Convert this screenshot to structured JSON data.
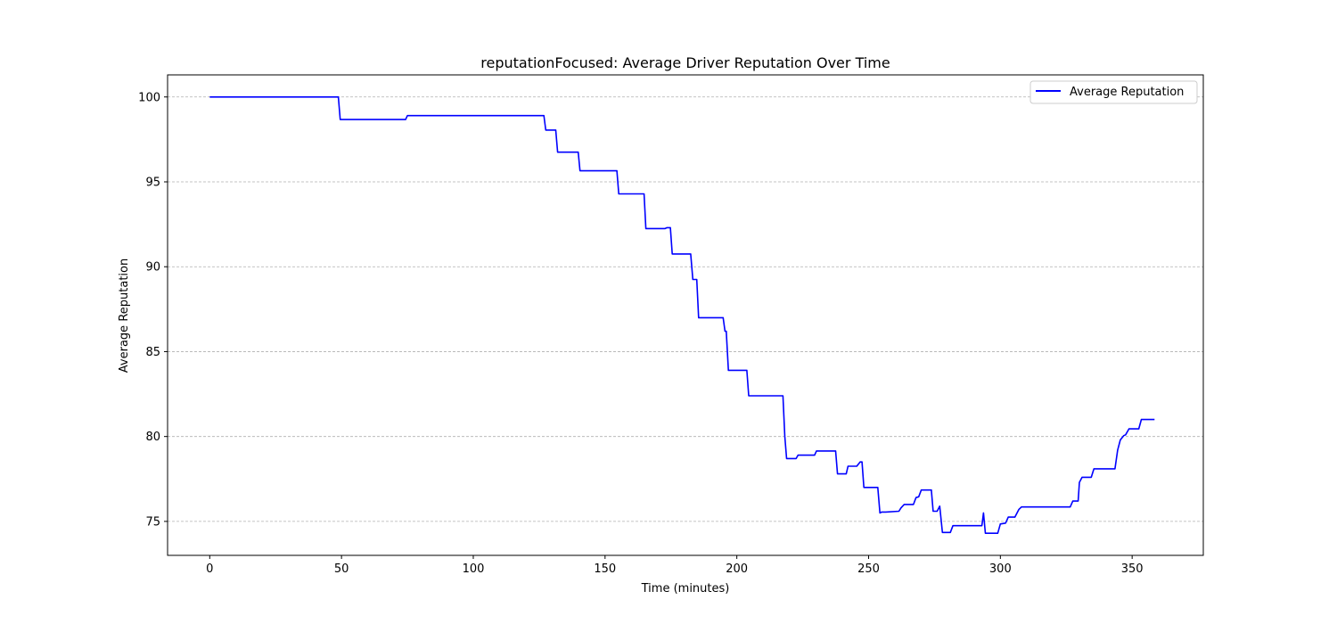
{
  "chart_data": {
    "type": "line",
    "title": "reputationFocused: Average Driver Reputation Over Time",
    "xlabel": "Time (minutes)",
    "ylabel": "Average Reputation",
    "xlim": [
      -16,
      377
    ],
    "ylim": [
      73.0,
      101.3
    ],
    "xticks": [
      0,
      50,
      100,
      150,
      200,
      250,
      300,
      350
    ],
    "yticks": [
      75,
      80,
      85,
      90,
      95,
      100
    ],
    "grid": "y-dashed",
    "legend_position": "top-right",
    "series": [
      {
        "name": "Average Reputation",
        "color": "#0000ff",
        "x": [
          0,
          48.8,
          49.5,
          74.3,
          75.0,
          126.8,
          127.5,
          131.3,
          132.0,
          139.8,
          140.5,
          154.5,
          155.2,
          164.8,
          165.5,
          172.8,
          173.5,
          174.8,
          175.5,
          182.5,
          183.3,
          184.8,
          185.5,
          194.8,
          195.5,
          196.0,
          196.8,
          203.8,
          204.5,
          217.5,
          218.2,
          218.9,
          222.5,
          223.2,
          229.5,
          230.2,
          237.5,
          238.2,
          241.5,
          242.2,
          245.5,
          246.8,
          247.5,
          248.2,
          253.5,
          254.3,
          255.0,
          256.5,
          261.5,
          262.3,
          263.5,
          267.0,
          268.0,
          269.0,
          270.0,
          273.8,
          274.5,
          276.0,
          277.0,
          278.0,
          281.0,
          282.0,
          293.0,
          293.6,
          294.3,
          299.0,
          300.0,
          302.0,
          303.0,
          305.5,
          307.0,
          308.0,
          326.5,
          327.5,
          329.5,
          330.0,
          331.0,
          334.5,
          335.5,
          343.5,
          344.5,
          345.5,
          346.8,
          347.5,
          348.8,
          349.5,
          352.5,
          353.5,
          358.5
        ],
        "y": [
          100.0,
          100.0,
          98.67,
          98.67,
          98.9,
          98.9,
          98.05,
          98.05,
          96.75,
          96.75,
          95.65,
          95.65,
          94.29,
          94.29,
          92.25,
          92.25,
          92.3,
          92.3,
          90.75,
          90.75,
          89.25,
          89.25,
          87.0,
          87.0,
          86.2,
          86.2,
          83.9,
          83.9,
          82.4,
          82.4,
          80.0,
          78.7,
          78.7,
          78.9,
          78.9,
          79.15,
          79.15,
          77.8,
          77.8,
          78.25,
          78.25,
          78.5,
          78.5,
          77.0,
          77.0,
          75.5,
          75.55,
          75.55,
          75.6,
          75.8,
          76.0,
          76.0,
          76.4,
          76.45,
          76.85,
          76.85,
          75.6,
          75.6,
          75.9,
          74.35,
          74.35,
          74.75,
          74.75,
          75.5,
          74.3,
          74.3,
          74.85,
          74.9,
          75.25,
          75.25,
          75.7,
          75.85,
          75.85,
          76.2,
          76.2,
          77.3,
          77.6,
          77.6,
          78.1,
          78.1,
          79.2,
          79.8,
          80.05,
          80.1,
          80.45,
          80.45,
          80.45,
          81.0,
          81.0
        ]
      }
    ]
  }
}
